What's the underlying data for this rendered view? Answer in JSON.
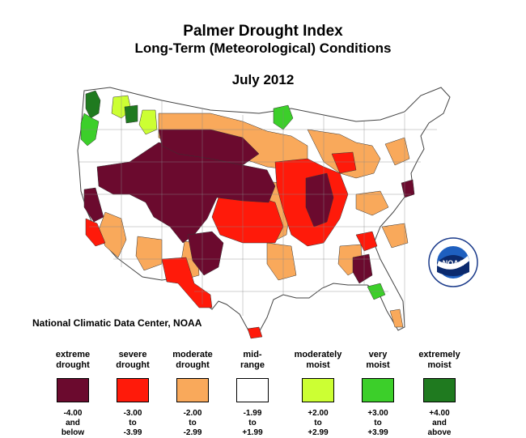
{
  "title": "Palmer Drought Index",
  "subtitle": "Long-Term (Meteorological) Conditions",
  "period": "July 2012",
  "source": "National Climatic Data Center, NOAA",
  "logo_text": "NOAA",
  "legend": [
    {
      "line1": "extreme",
      "line2": "drought",
      "color": "#6b0a2e",
      "r1": "-4.00",
      "r2": "and",
      "r3": "below"
    },
    {
      "line1": "severe",
      "line2": "drought",
      "color": "#ff1a0a",
      "r1": "-3.00",
      "r2": "to",
      "r3": "-3.99"
    },
    {
      "line1": "moderate",
      "line2": "drought",
      "color": "#f9a95b",
      "r1": "-2.00",
      "r2": "to",
      "r3": "-2.99"
    },
    {
      "line1": "mid-",
      "line2": "range",
      "color": "#ffffff",
      "r1": "-1.99",
      "r2": "to",
      "r3": "+1.99"
    },
    {
      "line1": "moderately",
      "line2": "moist",
      "color": "#ccff33",
      "r1": "+2.00",
      "r2": "to",
      "r3": "+2.99"
    },
    {
      "line1": "very",
      "line2": "moist",
      "color": "#3ccf2a",
      "r1": "+3.00",
      "r2": "to",
      "r3": "+3.99"
    },
    {
      "line1": "extremely",
      "line2": "moist",
      "color": "#1f7a1f",
      "r1": "+4.00",
      "r2": "and",
      "r3": "above"
    }
  ]
}
